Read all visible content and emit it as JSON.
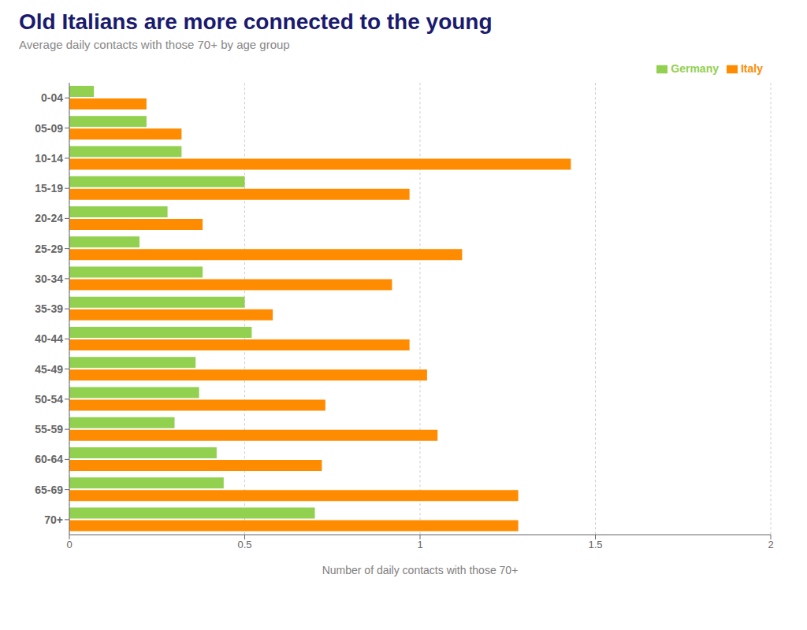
{
  "chart_data": {
    "type": "bar",
    "orientation": "horizontal",
    "title": "Old Italians are more connected to the young",
    "subtitle": "Average daily contacts with those 70+ by age group",
    "xlabel": "Number of daily contacts with those 70+",
    "categories": [
      "0-04",
      "05-09",
      "10-14",
      "15-19",
      "20-24",
      "25-29",
      "30-34",
      "35-39",
      "40-44",
      "45-49",
      "50-54",
      "55-59",
      "60-64",
      "65-69",
      "70+"
    ],
    "series": [
      {
        "name": "Germany",
        "color": "#92d050",
        "values": [
          0.07,
          0.22,
          0.32,
          0.5,
          0.28,
          0.2,
          0.38,
          0.5,
          0.52,
          0.36,
          0.37,
          0.3,
          0.42,
          0.44,
          0.7
        ]
      },
      {
        "name": "Italy",
        "color": "#ff8c00",
        "values": [
          0.22,
          0.32,
          1.43,
          0.97,
          0.38,
          1.12,
          0.92,
          0.58,
          0.97,
          1.02,
          0.73,
          1.05,
          0.72,
          1.28,
          1.28
        ]
      }
    ],
    "xlim": [
      0,
      2.0
    ],
    "xticks": [
      0,
      0.5,
      1,
      1.5,
      2
    ],
    "grid": true,
    "legend": "upper right"
  }
}
